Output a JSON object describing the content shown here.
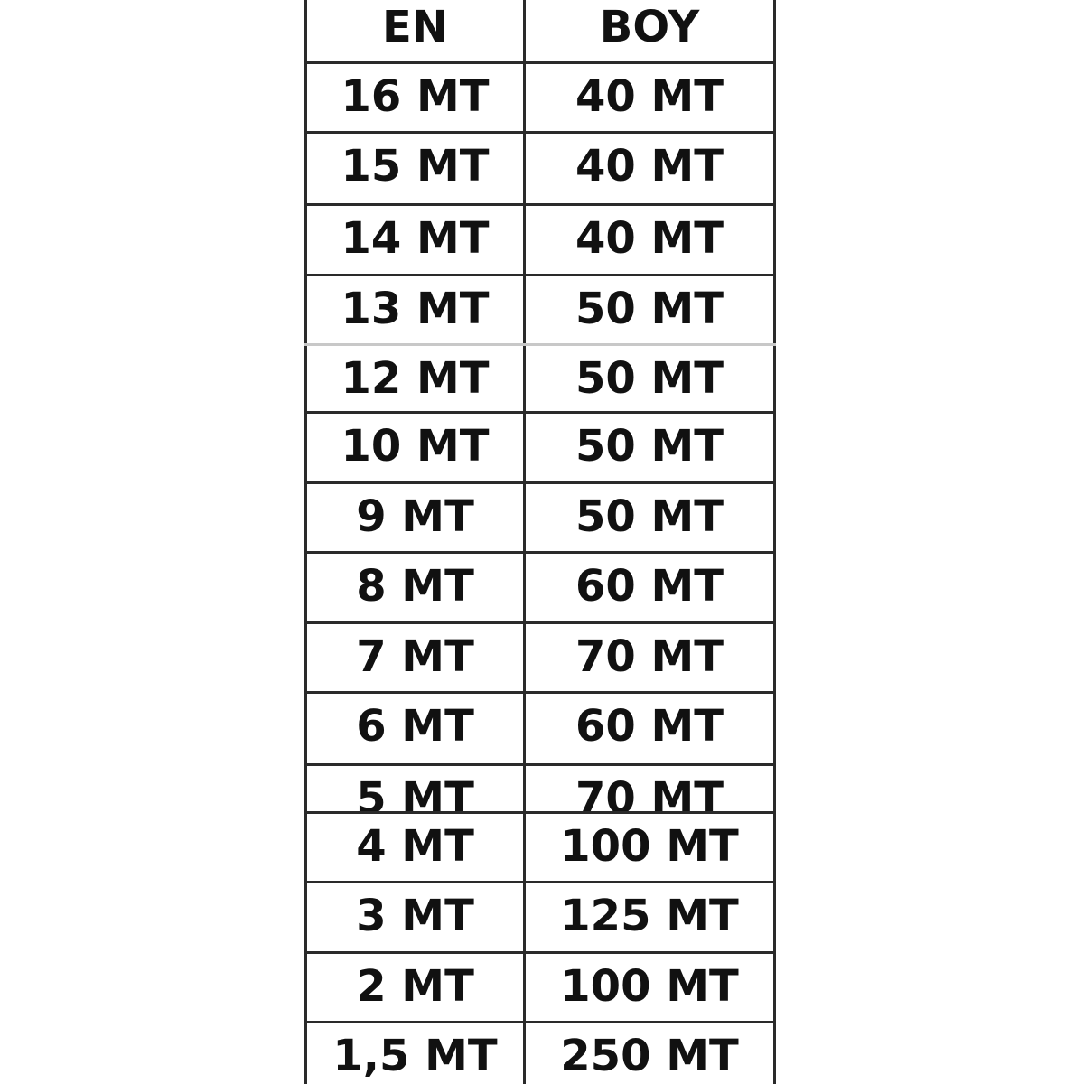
{
  "table": {
    "headers": [
      "EN",
      "BOY"
    ],
    "rows": [
      [
        "16 MT",
        "40 MT"
      ],
      [
        "15 MT",
        "40 MT"
      ],
      [
        "14 MT",
        "40 MT"
      ],
      [
        "13 MT",
        "50 MT"
      ],
      [
        "12 MT",
        "50 MT"
      ],
      [
        "10 MT",
        "50 MT"
      ],
      [
        "9 MT",
        "50 MT"
      ],
      [
        "8 MT",
        "60 MT"
      ],
      [
        "7 MT",
        "70 MT"
      ],
      [
        "6 MT",
        "60 MT"
      ],
      [
        "5 MT",
        "70 MT"
      ],
      [
        "4 MT",
        "100 MT"
      ],
      [
        "3 MT",
        "125 MT"
      ],
      [
        "2 MT",
        "100 MT"
      ],
      [
        "1,5 MT",
        "250 MT"
      ]
    ]
  }
}
